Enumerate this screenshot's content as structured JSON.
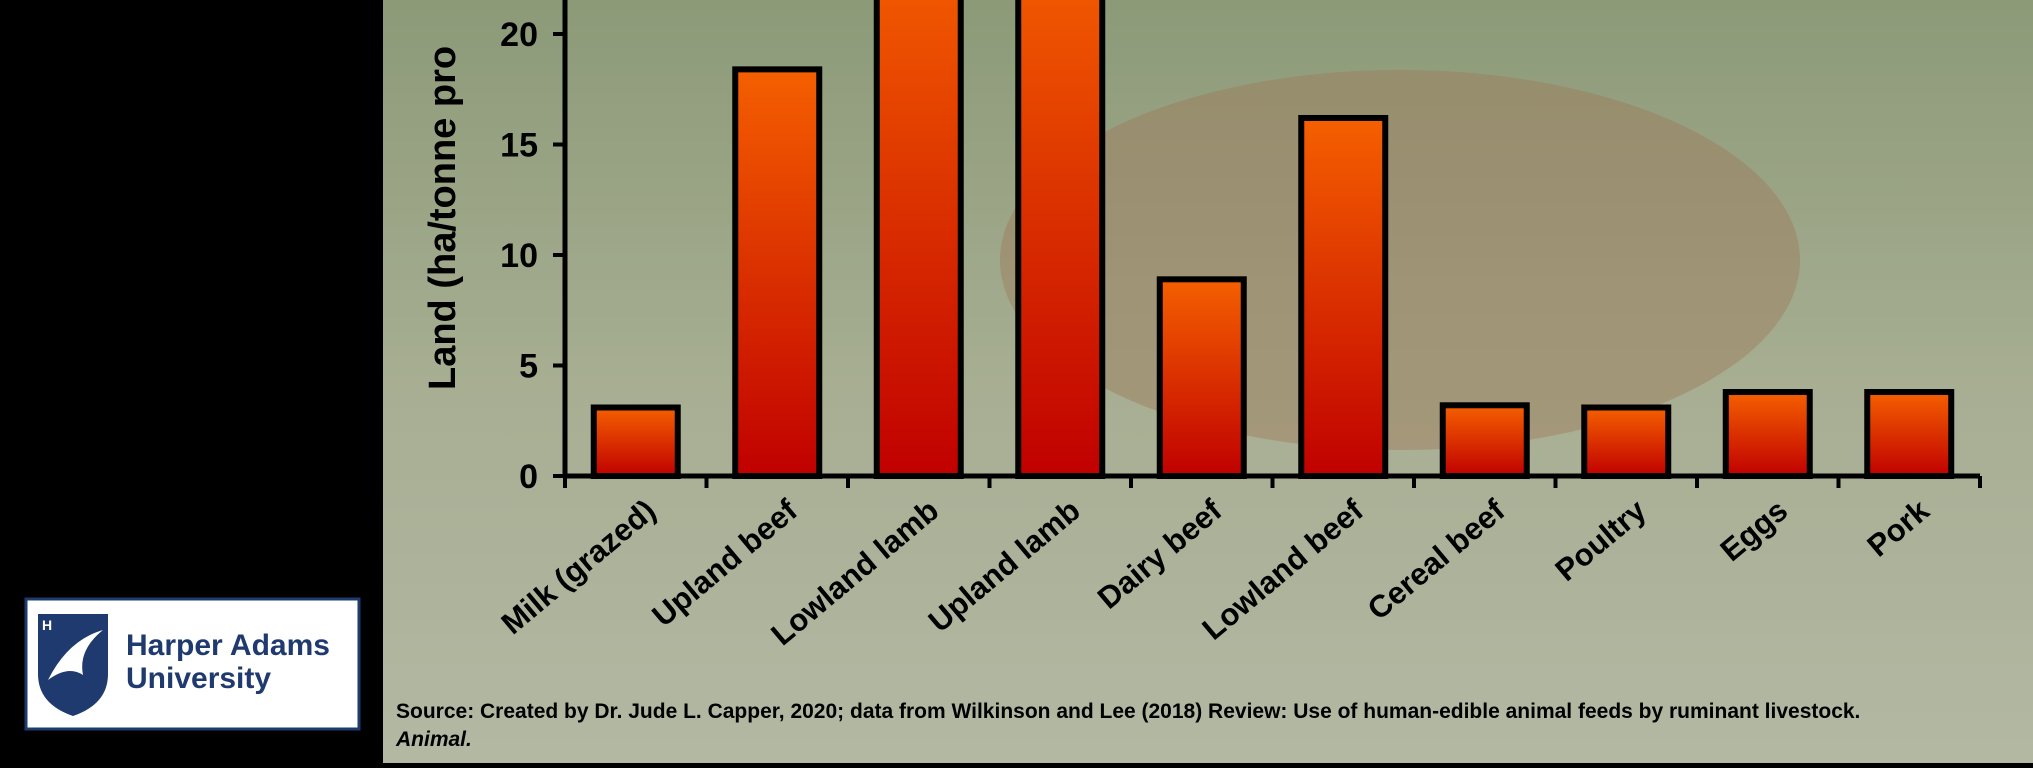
{
  "chart_data": {
    "type": "bar",
    "y_label": "Land (ha/tonne pro",
    "categories": [
      "Milk (grazed)",
      "Upland beef",
      "Lowland lamb",
      "Upland lamb",
      "Dairy beef",
      "Lowland beef",
      "Cereal beef",
      "Poultry",
      "Eggs",
      "Pork"
    ],
    "values": [
      3.1,
      18.4,
      24,
      24,
      8.9,
      16.2,
      3.2,
      3.1,
      3.8,
      3.8
    ],
    "color": "#e63a00",
    "ylim": [
      0,
      21.5
    ],
    "yticks": [
      0,
      5,
      10,
      15,
      20
    ],
    "source": "Source: Created by Dr. Jude L. Capper, 2020; data from Wilkinson and Lee (2018) Review: Use of human-edible animal feeds by ruminant livestock.",
    "source_journal": "Animal."
  },
  "logo": {
    "initial": "H",
    "line1": "Harper Adams",
    "line2": "University"
  }
}
